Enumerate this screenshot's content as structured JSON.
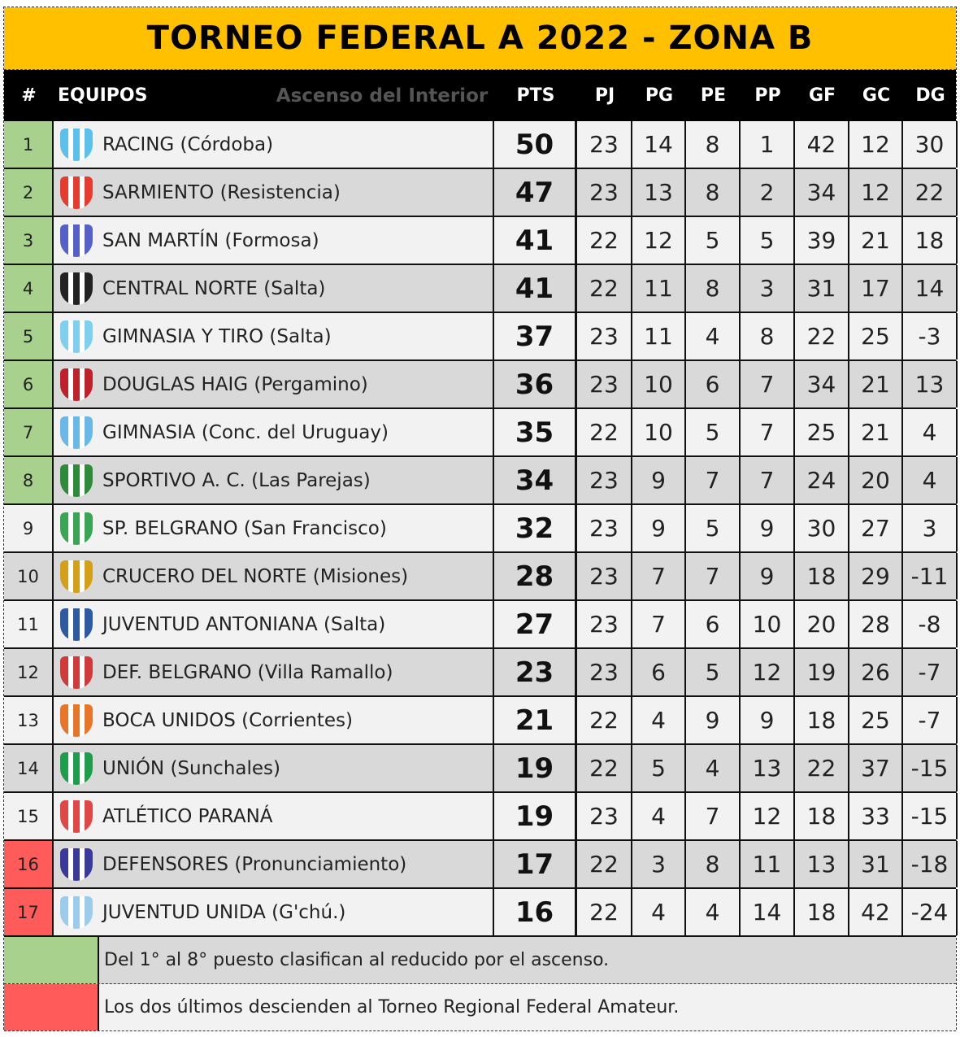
{
  "title": "TORNEO FEDERAL A 2022 - ZONA B",
  "header": {
    "pos": "#",
    "team": "EQUIPOS",
    "subtitle": "Ascenso del Interior",
    "pts": "PTS",
    "pj": "PJ",
    "pg": "PG",
    "pe": "PE",
    "pp": "PP",
    "gf": "GF",
    "gc": "GC",
    "dg": "DG"
  },
  "colors": {
    "title_bg": "#ffc000",
    "qualify": "#a9d18e",
    "relegate": "#ff5b5b",
    "row_light": "#f2f2f2",
    "row_dark": "#d9d9d9"
  },
  "rows": [
    {
      "pos": "1",
      "team": "RACING (Córdoba)",
      "pts": "50",
      "pj": "23",
      "pg": "14",
      "pe": "8",
      "pp": "1",
      "gf": "42",
      "gc": "12",
      "dg": "30",
      "zone": "qualify",
      "logo": "#5bc0eb"
    },
    {
      "pos": "2",
      "team": "SARMIENTO (Resistencia)",
      "pts": "47",
      "pj": "23",
      "pg": "13",
      "pe": "8",
      "pp": "2",
      "gf": "34",
      "gc": "12",
      "dg": "22",
      "zone": "qualify",
      "logo": "#e63b2e"
    },
    {
      "pos": "3",
      "team": "SAN MARTÍN (Formosa)",
      "pts": "41",
      "pj": "22",
      "pg": "12",
      "pe": "5",
      "pp": "5",
      "gf": "39",
      "gc": "21",
      "dg": "18",
      "zone": "qualify",
      "logo": "#5560c8"
    },
    {
      "pos": "4",
      "team": "CENTRAL NORTE (Salta)",
      "pts": "41",
      "pj": "22",
      "pg": "11",
      "pe": "8",
      "pp": "3",
      "gf": "31",
      "gc": "17",
      "dg": "14",
      "zone": "qualify",
      "logo": "#222222"
    },
    {
      "pos": "5",
      "team": "GIMNASIA Y TIRO (Salta)",
      "pts": "37",
      "pj": "23",
      "pg": "11",
      "pe": "4",
      "pp": "8",
      "gf": "22",
      "gc": "25",
      "dg": "-3",
      "zone": "qualify",
      "logo": "#7fd0ee"
    },
    {
      "pos": "6",
      "team": "DOUGLAS HAIG (Pergamino)",
      "pts": "36",
      "pj": "23",
      "pg": "10",
      "pe": "6",
      "pp": "7",
      "gf": "34",
      "gc": "21",
      "dg": "13",
      "zone": "qualify",
      "logo": "#c0202a"
    },
    {
      "pos": "7",
      "team": "GIMNASIA (Conc. del Uruguay)",
      "pts": "35",
      "pj": "22",
      "pg": "10",
      "pe": "5",
      "pp": "7",
      "gf": "25",
      "gc": "21",
      "dg": "4",
      "zone": "qualify",
      "logo": "#6ab8e8"
    },
    {
      "pos": "8",
      "team": "SPORTIVO A. C. (Las Parejas)",
      "pts": "34",
      "pj": "23",
      "pg": "9",
      "pe": "7",
      "pp": "7",
      "gf": "24",
      "gc": "20",
      "dg": "4",
      "zone": "qualify",
      "logo": "#2e8b3a"
    },
    {
      "pos": "9",
      "team": "SP. BELGRANO (San Francisco)",
      "pts": "32",
      "pj": "23",
      "pg": "9",
      "pe": "5",
      "pp": "9",
      "gf": "30",
      "gc": "27",
      "dg": "3",
      "zone": "none",
      "logo": "#3aa655"
    },
    {
      "pos": "10",
      "team": "CRUCERO DEL NORTE (Misiones)",
      "pts": "28",
      "pj": "23",
      "pg": "7",
      "pe": "7",
      "pp": "9",
      "gf": "18",
      "gc": "29",
      "dg": "-11",
      "zone": "none",
      "logo": "#d4a017"
    },
    {
      "pos": "11",
      "team": "JUVENTUD ANTONIANA (Salta)",
      "pts": "27",
      "pj": "23",
      "pg": "7",
      "pe": "6",
      "pp": "10",
      "gf": "20",
      "gc": "28",
      "dg": "-8",
      "zone": "none",
      "logo": "#2d5aa0"
    },
    {
      "pos": "12",
      "team": "DEF. BELGRANO (Villa Ramallo)",
      "pts": "23",
      "pj": "23",
      "pg": "6",
      "pe": "5",
      "pp": "12",
      "gf": "19",
      "gc": "26",
      "dg": "-7",
      "zone": "none",
      "logo": "#d03a3a"
    },
    {
      "pos": "13",
      "team": "BOCA UNIDOS (Corrientes)",
      "pts": "21",
      "pj": "22",
      "pg": "4",
      "pe": "9",
      "pp": "9",
      "gf": "18",
      "gc": "25",
      "dg": "-7",
      "zone": "none",
      "logo": "#e8762a"
    },
    {
      "pos": "14",
      "team": "UNIÓN (Sunchales)",
      "pts": "19",
      "pj": "22",
      "pg": "5",
      "pe": "4",
      "pp": "13",
      "gf": "22",
      "gc": "37",
      "dg": "-15",
      "zone": "none",
      "logo": "#1e9e4a"
    },
    {
      "pos": "15",
      "team": "ATLÉTICO PARANÁ",
      "pts": "19",
      "pj": "23",
      "pg": "4",
      "pe": "7",
      "pp": "12",
      "gf": "18",
      "gc": "33",
      "dg": "-15",
      "zone": "none",
      "logo": "#e04848"
    },
    {
      "pos": "16",
      "team": "DEFENSORES (Pronunciamiento)",
      "pts": "17",
      "pj": "22",
      "pg": "3",
      "pe": "8",
      "pp": "11",
      "gf": "13",
      "gc": "31",
      "dg": "-18",
      "zone": "relegate",
      "logo": "#3a3a9a"
    },
    {
      "pos": "17",
      "team": "JUVENTUD UNIDA (G'chú.)",
      "pts": "16",
      "pj": "22",
      "pg": "4",
      "pe": "4",
      "pp": "14",
      "gf": "18",
      "gc": "42",
      "dg": "-24",
      "zone": "relegate",
      "logo": "#9ccbec"
    }
  ],
  "legend": [
    {
      "text": "Del 1° al 8° puesto clasifican al reducido por el ascenso.",
      "zone": "qualify"
    },
    {
      "text": "Los dos últimos descienden al Torneo Regional Federal Amateur.",
      "zone": "relegate"
    }
  ]
}
